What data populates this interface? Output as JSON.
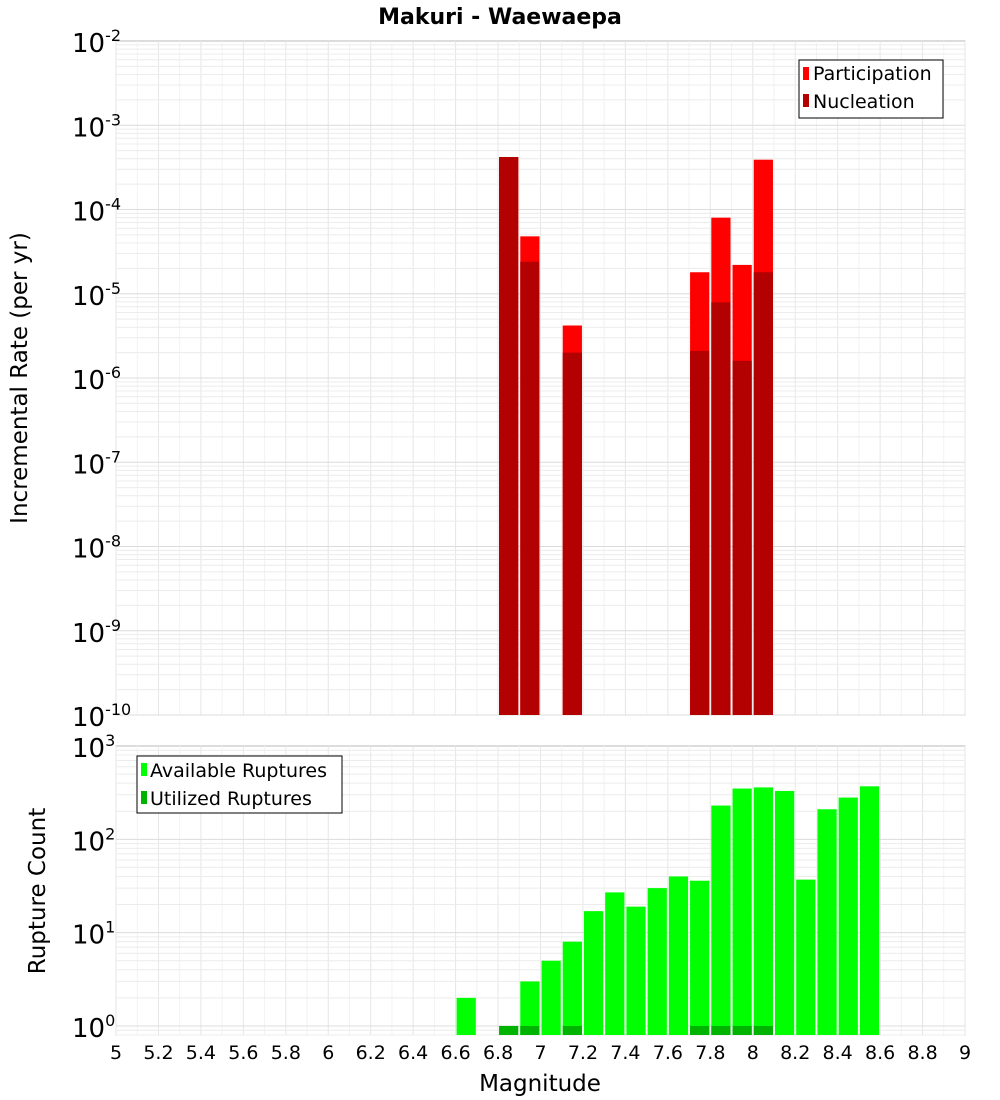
{
  "chart_data": [
    {
      "type": "bar",
      "title": "Makuri - Waewaepa",
      "ylabel": "Incremental Rate (per yr)",
      "xlabel": "",
      "yscale": "log",
      "ylim": [
        1e-10,
        0.01
      ],
      "xlim": [
        5,
        9
      ],
      "grid": true,
      "legend_position": "top-right",
      "y_tick_labels": [
        {
          "base": "10",
          "exp": "-10"
        },
        {
          "base": "10",
          "exp": "-9"
        },
        {
          "base": "10",
          "exp": "-8"
        },
        {
          "base": "10",
          "exp": "-7"
        },
        {
          "base": "10",
          "exp": "-6"
        },
        {
          "base": "10",
          "exp": "-5"
        },
        {
          "base": "10",
          "exp": "-4"
        },
        {
          "base": "10",
          "exp": "-3"
        },
        {
          "base": "10",
          "exp": "-2"
        }
      ],
      "series": [
        {
          "name": "Participation",
          "color": "#ff0000",
          "points": [
            {
              "x": 6.85,
              "y": 0.00042
            },
            {
              "x": 6.95,
              "y": 4.8e-05
            },
            {
              "x": 7.15,
              "y": 4.2e-06
            },
            {
              "x": 7.75,
              "y": 1.8e-05
            },
            {
              "x": 7.85,
              "y": 8e-05
            },
            {
              "x": 7.95,
              "y": 2.2e-05
            },
            {
              "x": 8.05,
              "y": 0.00039
            }
          ]
        },
        {
          "name": "Nucleation",
          "color": "#b30000",
          "points": [
            {
              "x": 6.85,
              "y": 0.00042
            },
            {
              "x": 6.95,
              "y": 2.4e-05
            },
            {
              "x": 7.15,
              "y": 2e-06
            },
            {
              "x": 7.75,
              "y": 2.1e-06
            },
            {
              "x": 7.85,
              "y": 7.9e-06
            },
            {
              "x": 7.95,
              "y": 1.6e-06
            },
            {
              "x": 8.05,
              "y": 1.8e-05
            }
          ]
        }
      ]
    },
    {
      "type": "bar",
      "title": "",
      "ylabel": "Rupture Count",
      "xlabel": "Magnitude",
      "yscale": "log",
      "ylim": [
        0.8,
        1000
      ],
      "xlim": [
        5,
        9
      ],
      "grid": true,
      "legend_position": "top-left",
      "y_tick_labels": [
        {
          "base": "10",
          "exp": "0"
        },
        {
          "base": "10",
          "exp": "1"
        },
        {
          "base": "10",
          "exp": "2"
        },
        {
          "base": "10",
          "exp": "3"
        }
      ],
      "x_tick_labels": [
        "5",
        "5.2",
        "5.4",
        "5.6",
        "5.8",
        "6",
        "6.2",
        "6.4",
        "6.6",
        "6.8",
        "7",
        "7.2",
        "7.4",
        "7.6",
        "7.8",
        "8",
        "8.2",
        "8.4",
        "8.6",
        "8.8",
        "9"
      ],
      "series": [
        {
          "name": "Available Ruptures",
          "color": "#00ff00",
          "points": [
            {
              "x": 6.65,
              "y": 2
            },
            {
              "x": 6.95,
              "y": 3
            },
            {
              "x": 7.05,
              "y": 5
            },
            {
              "x": 7.15,
              "y": 8
            },
            {
              "x": 7.25,
              "y": 17
            },
            {
              "x": 7.35,
              "y": 27
            },
            {
              "x": 7.45,
              "y": 19
            },
            {
              "x": 7.55,
              "y": 30
            },
            {
              "x": 7.65,
              "y": 40
            },
            {
              "x": 7.75,
              "y": 36
            },
            {
              "x": 7.85,
              "y": 230
            },
            {
              "x": 7.95,
              "y": 350
            },
            {
              "x": 8.05,
              "y": 360
            },
            {
              "x": 8.15,
              "y": 330
            },
            {
              "x": 8.25,
              "y": 37
            },
            {
              "x": 8.35,
              "y": 210
            },
            {
              "x": 8.45,
              "y": 280
            },
            {
              "x": 8.55,
              "y": 370
            }
          ]
        },
        {
          "name": "Utilized Ruptures",
          "color": "#00b300",
          "points": [
            {
              "x": 6.85,
              "y": 1
            },
            {
              "x": 6.95,
              "y": 1
            },
            {
              "x": 7.15,
              "y": 1
            },
            {
              "x": 7.75,
              "y": 1
            },
            {
              "x": 7.85,
              "y": 1
            },
            {
              "x": 7.95,
              "y": 1
            },
            {
              "x": 8.05,
              "y": 1
            }
          ]
        }
      ]
    }
  ]
}
